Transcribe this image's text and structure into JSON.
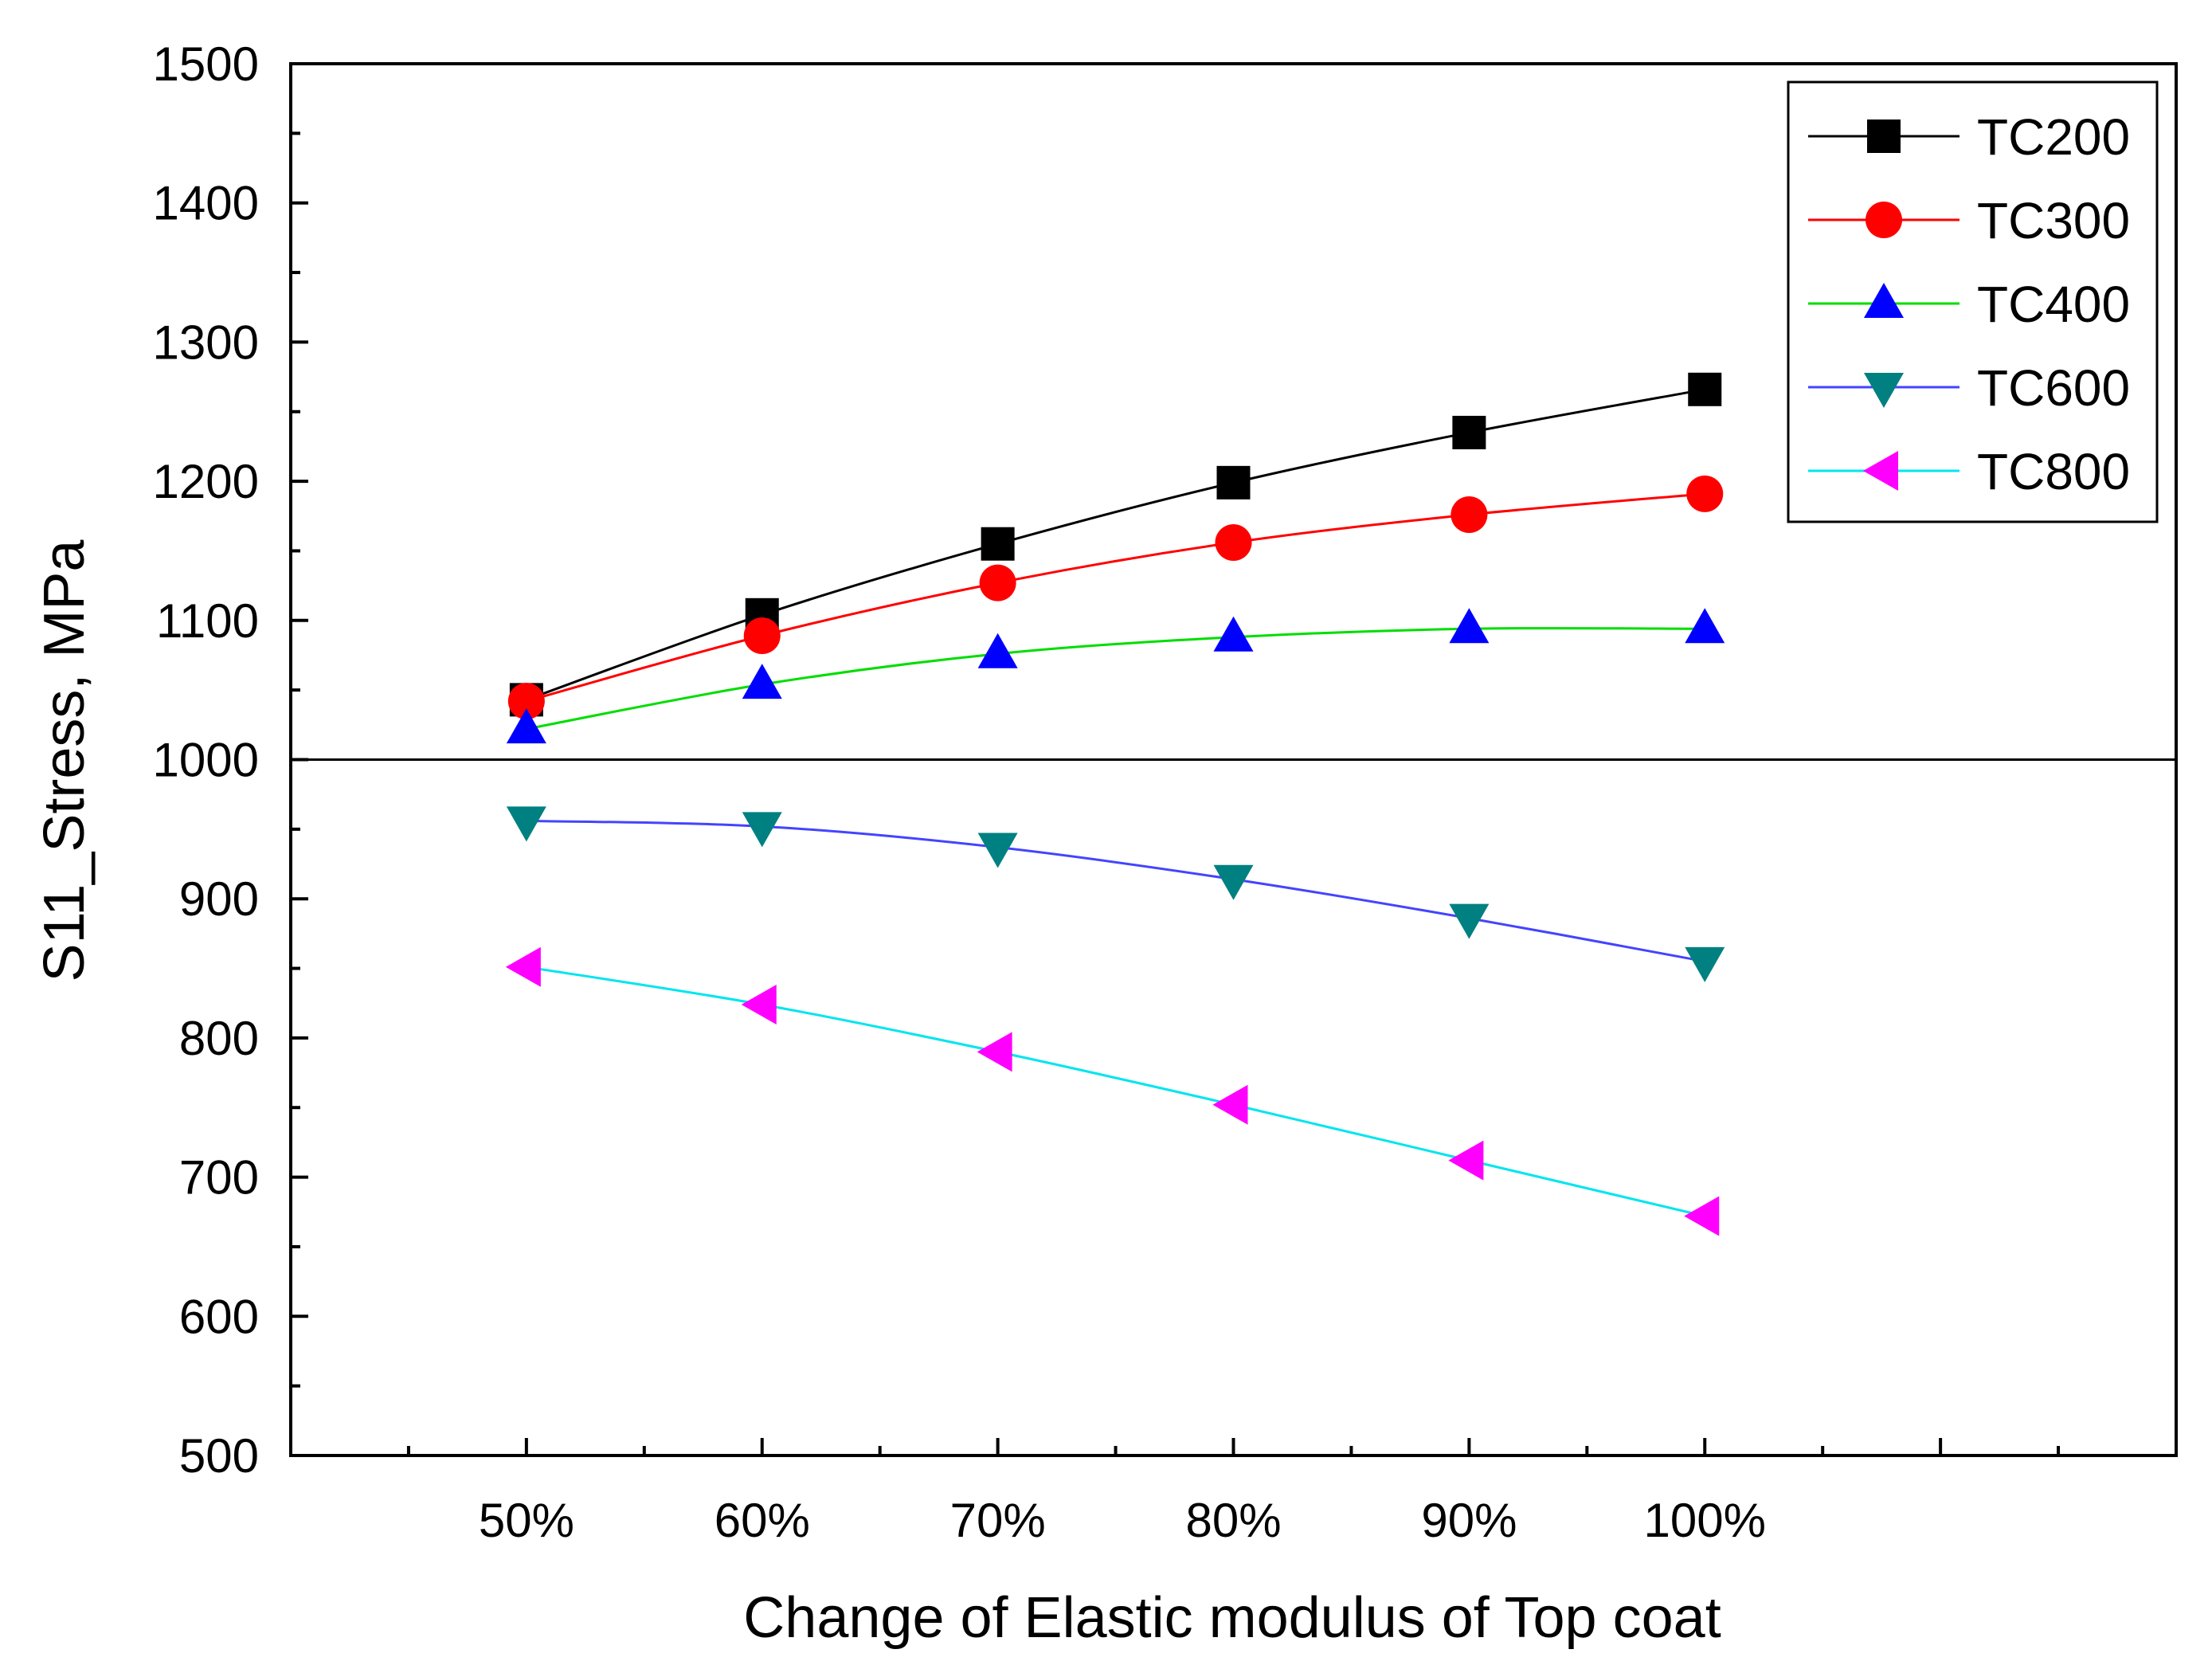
{
  "chart_data": {
    "type": "line",
    "title": "",
    "xlabel": "Change of Elastic modulus of Top coat",
    "ylabel": "S11_Stress, MPa",
    "categories": [
      "50%",
      "60%",
      "70%",
      "80%",
      "90%",
      "100%"
    ],
    "x_range": [
      40,
      120
    ],
    "x_major_ticks": [
      50,
      60,
      70,
      80,
      90,
      100,
      110,
      120
    ],
    "ylim": [
      500,
      1500
    ],
    "y_ticks": [
      500,
      600,
      700,
      800,
      900,
      1000,
      1100,
      1200,
      1300,
      1400,
      1500
    ],
    "reference_line": 1000,
    "grid": false,
    "legend_position": "top-right",
    "series": [
      {
        "name": "TC200",
        "color": "#000000",
        "marker": "square",
        "x": [
          50,
          60,
          70,
          80,
          90,
          100
        ],
        "values": [
          1043,
          1104,
          1155,
          1199,
          1235,
          1266
        ]
      },
      {
        "name": "TC300",
        "color": "#ff0000",
        "marker": "circle",
        "x": [
          50,
          60,
          70,
          80,
          90,
          100
        ],
        "values": [
          1042,
          1089,
          1127,
          1156,
          1176,
          1191
        ]
      },
      {
        "name": "TC400",
        "color": "#0000ff",
        "line_color": "#00dd00",
        "marker": "triangle-up",
        "x": [
          50,
          60,
          70,
          80,
          90,
          100
        ],
        "values": [
          1022,
          1054,
          1076,
          1088,
          1094,
          1094
        ]
      },
      {
        "name": "TC600",
        "color": "#008080",
        "line_color": "#4444ff",
        "marker": "triangle-down",
        "x": [
          50,
          60,
          70,
          80,
          90,
          100
        ],
        "values": [
          956,
          952,
          937,
          914,
          886,
          855
        ]
      },
      {
        "name": "TC800",
        "color": "#ff00ff",
        "line_color": "#00e5ee",
        "marker": "triangle-left",
        "x": [
          50,
          60,
          70,
          80,
          90,
          100
        ],
        "values": [
          851,
          824,
          790,
          752,
          712,
          672
        ]
      }
    ]
  }
}
